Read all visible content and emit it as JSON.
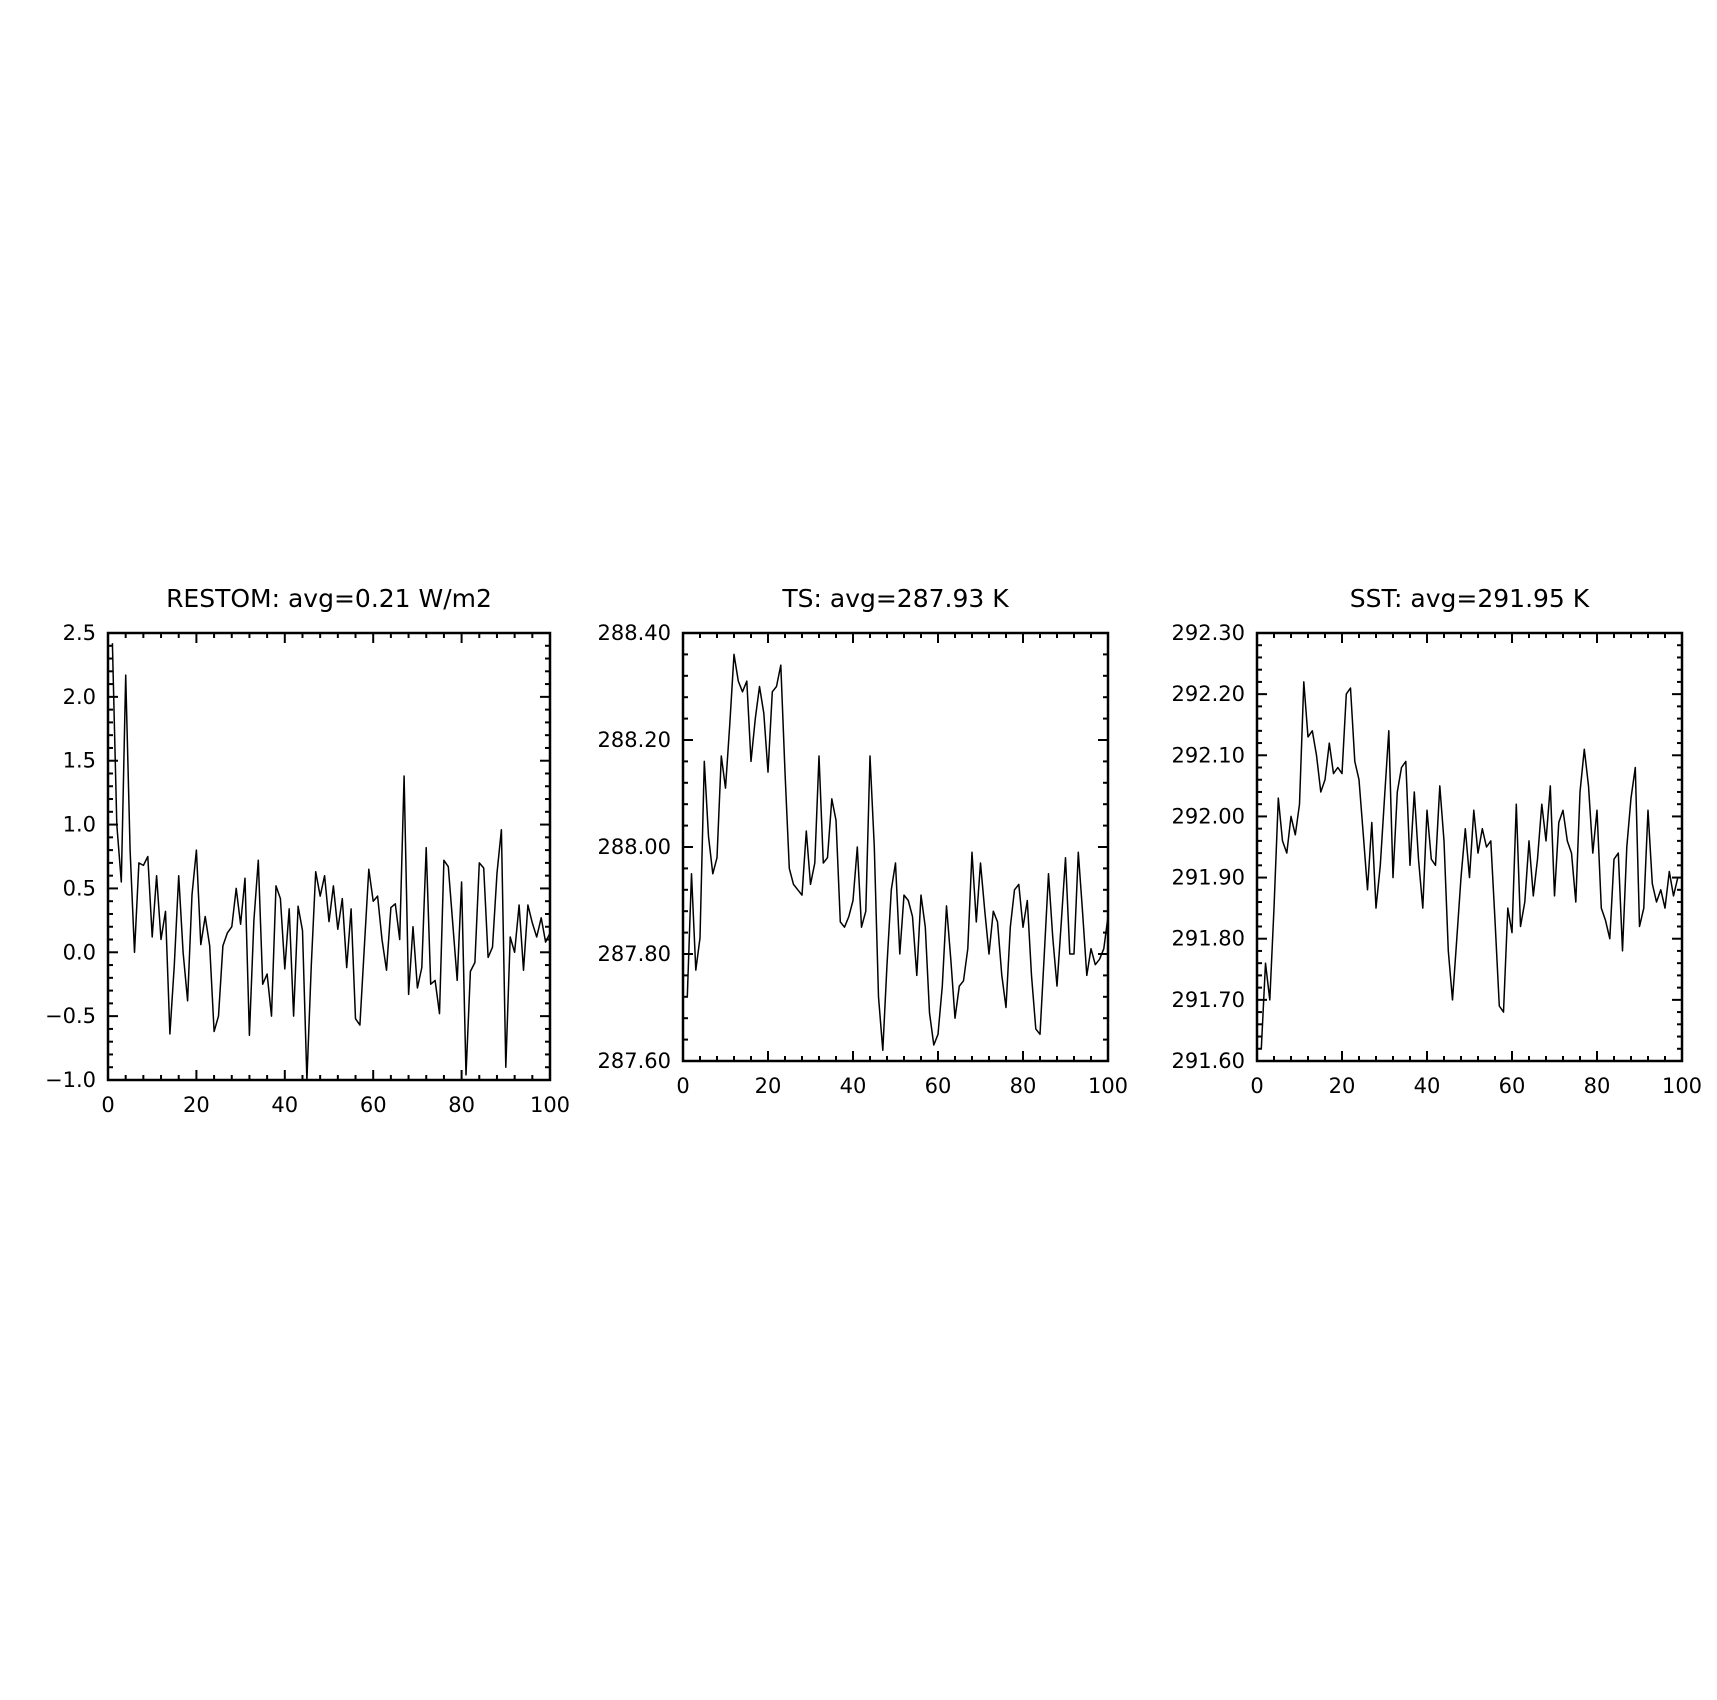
{
  "chart_data": [
    {
      "type": "line",
      "title": "RESTOM: avg=0.21 W/m2",
      "xlim": [
        0,
        100
      ],
      "ylim": [
        -1.0,
        2.5
      ],
      "x_ticks": [
        0,
        20,
        40,
        60,
        80,
        100
      ],
      "x_tick_labels": [
        "0",
        "20",
        "40",
        "60",
        "80",
        "100"
      ],
      "y_ticks": [
        -1.0,
        -0.5,
        0.0,
        0.5,
        1.0,
        1.5,
        2.0,
        2.5
      ],
      "y_tick_labels": [
        "−1.0",
        "−0.5",
        "0.0",
        "0.5",
        "1.0",
        "1.5",
        "2.0",
        "2.5"
      ],
      "grid": false,
      "series": [
        {
          "x": [
            1,
            2,
            3,
            4,
            5,
            6,
            7,
            8,
            9,
            10,
            11,
            12,
            13,
            14,
            15,
            16,
            17,
            18,
            19,
            20,
            21,
            22,
            23,
            24,
            25,
            26,
            27,
            28,
            29,
            30,
            31,
            32,
            33,
            34,
            35,
            36,
            37,
            38,
            39,
            40,
            41,
            42,
            43,
            44,
            45,
            46,
            47,
            48,
            49,
            50,
            51,
            52,
            53,
            54,
            55,
            56,
            57,
            58,
            59,
            60,
            61,
            62,
            63,
            64,
            65,
            66,
            67,
            68,
            69,
            70,
            71,
            72,
            73,
            74,
            75,
            76,
            77,
            78,
            79,
            80,
            81,
            82,
            83,
            84,
            85,
            86,
            87,
            88,
            89,
            90,
            91,
            92,
            93,
            94,
            95,
            96,
            97,
            98,
            99,
            100
          ],
          "y": [
            2.42,
            1.0,
            0.55,
            2.17,
            0.8,
            0.0,
            0.7,
            0.68,
            0.75,
            0.12,
            0.6,
            0.1,
            0.32,
            -0.64,
            -0.1,
            0.6,
            0.0,
            -0.38,
            0.45,
            0.8,
            0.06,
            0.28,
            0.05,
            -0.62,
            -0.5,
            0.05,
            0.15,
            0.2,
            0.5,
            0.22,
            0.58,
            -0.65,
            0.25,
            0.72,
            -0.25,
            -0.17,
            -0.5,
            0.52,
            0.42,
            -0.13,
            0.34,
            -0.5,
            0.36,
            0.17,
            -1.0,
            -0.1,
            0.63,
            0.44,
            0.6,
            0.24,
            0.52,
            0.18,
            0.42,
            -0.12,
            0.34,
            -0.52,
            -0.57,
            0.05,
            0.65,
            0.4,
            0.44,
            0.1,
            -0.14,
            0.35,
            0.38,
            0.1,
            1.38,
            -0.33,
            0.2,
            -0.28,
            -0.12,
            0.82,
            -0.25,
            -0.22,
            -0.48,
            0.72,
            0.67,
            0.22,
            -0.22,
            0.55,
            -0.96,
            -0.15,
            -0.08,
            0.7,
            0.66,
            -0.04,
            0.04,
            0.62,
            0.96,
            -0.9,
            0.12,
            0.0,
            0.37,
            -0.14,
            0.37,
            0.23,
            0.12,
            0.27,
            0.08,
            0.15
          ]
        }
      ]
    },
    {
      "type": "line",
      "title": "TS: avg=287.93 K",
      "xlim": [
        0,
        100
      ],
      "ylim": [
        287.6,
        288.4
      ],
      "x_ticks": [
        0,
        20,
        40,
        60,
        80,
        100
      ],
      "x_tick_labels": [
        "0",
        "20",
        "40",
        "60",
        "80",
        "100"
      ],
      "y_ticks": [
        287.6,
        287.8,
        288.0,
        288.2,
        288.4
      ],
      "y_tick_labels": [
        "287.60",
        "287.80",
        "288.00",
        "288.20",
        "288.40"
      ],
      "grid": false,
      "series": [
        {
          "x": [
            1,
            2,
            3,
            4,
            5,
            6,
            7,
            8,
            9,
            10,
            11,
            12,
            13,
            14,
            15,
            16,
            17,
            18,
            19,
            20,
            21,
            22,
            23,
            24,
            25,
            26,
            27,
            28,
            29,
            30,
            31,
            32,
            33,
            34,
            35,
            36,
            37,
            38,
            39,
            40,
            41,
            42,
            43,
            44,
            45,
            46,
            47,
            48,
            49,
            50,
            51,
            52,
            53,
            54,
            55,
            56,
            57,
            58,
            59,
            60,
            61,
            62,
            63,
            64,
            65,
            66,
            67,
            68,
            69,
            70,
            71,
            72,
            73,
            74,
            75,
            76,
            77,
            78,
            79,
            80,
            81,
            82,
            83,
            84,
            85,
            86,
            87,
            88,
            89,
            90,
            91,
            92,
            93,
            94,
            95,
            96,
            97,
            98,
            99,
            100
          ],
          "y": [
            287.72,
            287.95,
            287.77,
            287.83,
            288.16,
            288.02,
            287.95,
            287.98,
            288.17,
            288.11,
            288.23,
            288.36,
            288.31,
            288.29,
            288.31,
            288.16,
            288.24,
            288.3,
            288.25,
            288.14,
            288.29,
            288.3,
            288.34,
            288.14,
            287.96,
            287.93,
            287.92,
            287.91,
            288.03,
            287.93,
            287.97,
            288.17,
            287.97,
            287.98,
            288.09,
            288.05,
            287.86,
            287.85,
            287.87,
            287.9,
            288.0,
            287.85,
            287.88,
            288.17,
            288.0,
            287.72,
            287.62,
            287.78,
            287.92,
            287.97,
            287.8,
            287.91,
            287.9,
            287.87,
            287.76,
            287.91,
            287.85,
            287.69,
            287.63,
            287.65,
            287.74,
            287.89,
            287.79,
            287.68,
            287.74,
            287.75,
            287.81,
            287.99,
            287.86,
            287.97,
            287.88,
            287.8,
            287.88,
            287.86,
            287.76,
            287.7,
            287.85,
            287.92,
            287.93,
            287.85,
            287.9,
            287.76,
            287.66,
            287.65,
            287.8,
            287.95,
            287.83,
            287.74,
            287.86,
            287.98,
            287.8,
            287.8,
            287.99,
            287.88,
            287.76,
            287.81,
            287.78,
            287.79,
            287.81,
            287.87
          ]
        }
      ]
    },
    {
      "type": "line",
      "title": "SST: avg=291.95 K",
      "xlim": [
        0,
        100
      ],
      "ylim": [
        291.6,
        292.3
      ],
      "x_ticks": [
        0,
        20,
        40,
        60,
        80,
        100
      ],
      "x_tick_labels": [
        "0",
        "20",
        "40",
        "60",
        "80",
        "100"
      ],
      "y_ticks": [
        291.6,
        291.7,
        291.8,
        291.9,
        292.0,
        292.1,
        292.2,
        292.3
      ],
      "y_tick_labels": [
        "291.60",
        "291.70",
        "291.80",
        "291.90",
        "292.00",
        "292.10",
        "292.20",
        "292.30"
      ],
      "grid": false,
      "series": [
        {
          "x": [
            1,
            2,
            3,
            4,
            5,
            6,
            7,
            8,
            9,
            10,
            11,
            12,
            13,
            14,
            15,
            16,
            17,
            18,
            19,
            20,
            21,
            22,
            23,
            24,
            25,
            26,
            27,
            28,
            29,
            30,
            31,
            32,
            33,
            34,
            35,
            36,
            37,
            38,
            39,
            40,
            41,
            42,
            43,
            44,
            45,
            46,
            47,
            48,
            49,
            50,
            51,
            52,
            53,
            54,
            55,
            56,
            57,
            58,
            59,
            60,
            61,
            62,
            63,
            64,
            65,
            66,
            67,
            68,
            69,
            70,
            71,
            72,
            73,
            74,
            75,
            76,
            77,
            78,
            79,
            80,
            81,
            82,
            83,
            84,
            85,
            86,
            87,
            88,
            89,
            90,
            91,
            92,
            93,
            94,
            95,
            96,
            97,
            98,
            99,
            100
          ],
          "y": [
            291.62,
            291.76,
            291.7,
            291.85,
            292.03,
            291.96,
            291.94,
            292.0,
            291.97,
            292.02,
            292.22,
            292.13,
            292.14,
            292.1,
            292.04,
            292.06,
            292.12,
            292.07,
            292.08,
            292.07,
            292.2,
            292.21,
            292.09,
            292.06,
            291.97,
            291.88,
            291.99,
            291.85,
            291.92,
            292.03,
            292.14,
            291.9,
            292.04,
            292.08,
            292.09,
            291.92,
            292.04,
            291.93,
            291.85,
            292.01,
            291.93,
            291.92,
            292.05,
            291.96,
            291.78,
            291.7,
            291.8,
            291.9,
            291.98,
            291.9,
            292.01,
            291.94,
            291.98,
            291.95,
            291.96,
            291.83,
            291.69,
            291.68,
            291.85,
            291.81,
            292.02,
            291.82,
            291.86,
            291.96,
            291.87,
            291.93,
            292.02,
            291.96,
            292.05,
            291.87,
            291.99,
            292.01,
            291.96,
            291.94,
            291.86,
            292.04,
            292.11,
            292.05,
            291.94,
            292.01,
            291.85,
            291.83,
            291.8,
            291.93,
            291.94,
            291.78,
            291.95,
            292.03,
            292.08,
            291.82,
            291.85,
            292.01,
            291.89,
            291.86,
            291.88,
            291.85,
            291.91,
            291.87,
            291.9,
            291.9
          ]
        }
      ]
    }
  ]
}
